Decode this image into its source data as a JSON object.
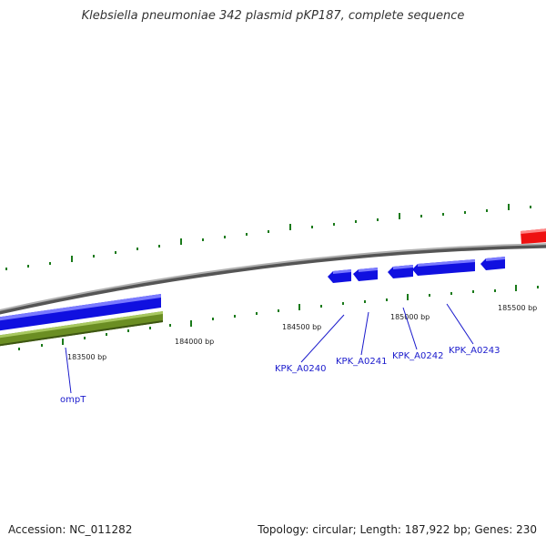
{
  "title": "Klebsiella pneumoniae 342 plasmid pKP187, complete sequence",
  "footer": {
    "accession": "Accession: NC_011282",
    "summary": "Topology: circular; Length: 187,922 bp; Genes: 230"
  },
  "colors": {
    "backbone": "#8a8a8a",
    "cds_blue": "#1010e0",
    "cds_green": "#6b8e23",
    "cds_red": "#ee1111",
    "tick": "#1a7a1a",
    "label": "#1a1acc"
  },
  "tick_labels": [
    "183500 bp",
    "184000 bp",
    "184500 bp",
    "185000 bp",
    "185500 bp"
  ],
  "gene_labels": [
    "ompT",
    "KPK_A0240",
    "KPK_A0241",
    "KPK_A0242",
    "KPK_A0243"
  ]
}
